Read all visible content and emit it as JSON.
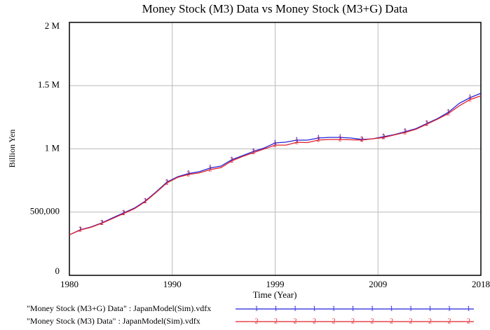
{
  "chart_data": {
    "type": "line",
    "title": "Money Stock (M3) Data vs Money Stock (M3+G) Data",
    "x_label": "Time (Year)",
    "y_label": "Billion Yen",
    "x": [
      1980,
      1981,
      1982,
      1983,
      1984,
      1985,
      1986,
      1987,
      1988,
      1989,
      1990,
      1991,
      1992,
      1993,
      1994,
      1995,
      1996,
      1997,
      1998,
      1999,
      2000,
      2001,
      2002,
      2003,
      2004,
      2005,
      2006,
      2007,
      2008,
      2009,
      2010,
      2011,
      2012,
      2013,
      2014,
      2015,
      2016,
      2017,
      2018
    ],
    "series": [
      {
        "name": "\"Money Stock (M3+G) Data\" : JapanModel(Sim).vdfx",
        "marker": "1",
        "color": "#2323d8",
        "values": [
          320000,
          360000,
          383000,
          415000,
          455000,
          493000,
          532000,
          587000,
          660000,
          737000,
          780000,
          805000,
          820000,
          848000,
          864000,
          914000,
          947000,
          980000,
          1008000,
          1047000,
          1053000,
          1069000,
          1069000,
          1086000,
          1091000,
          1091000,
          1086000,
          1075000,
          1080000,
          1096000,
          1113000,
          1136000,
          1160000,
          1200000,
          1240000,
          1290000,
          1360000,
          1405000,
          1440000
        ]
      },
      {
        "name": "\"Money Stock (M3) Data\" : JapanModel(Sim).vdfx",
        "marker": "2",
        "color": "#e0202a",
        "values": [
          320000,
          358000,
          380000,
          412000,
          450000,
          488000,
          527000,
          582000,
          655000,
          730000,
          775000,
          798000,
          810000,
          836000,
          852000,
          905000,
          940000,
          970000,
          1000000,
          1030000,
          1030000,
          1052000,
          1050000,
          1070000,
          1074000,
          1074000,
          1072000,
          1070000,
          1080000,
          1090000,
          1110000,
          1130000,
          1155000,
          1195000,
          1235000,
          1280000,
          1340000,
          1390000,
          1420000
        ]
      }
    ],
    "xlim": [
      1980,
      2018
    ],
    "xticks": [
      1980,
      {
        "value": 1989.5,
        "label": "1990"
      },
      1999,
      {
        "value": 2008.5,
        "label": "2009"
      },
      2018
    ],
    "ylim": [
      0,
      2000000
    ],
    "yticks": [
      0,
      {
        "value": 500000,
        "label": "500,000"
      },
      {
        "value": 1000000,
        "label": "1 M"
      },
      {
        "value": 1500000,
        "label": "1.5 M"
      },
      {
        "value": 2000000,
        "label": "2 M"
      }
    ],
    "grid": true
  }
}
